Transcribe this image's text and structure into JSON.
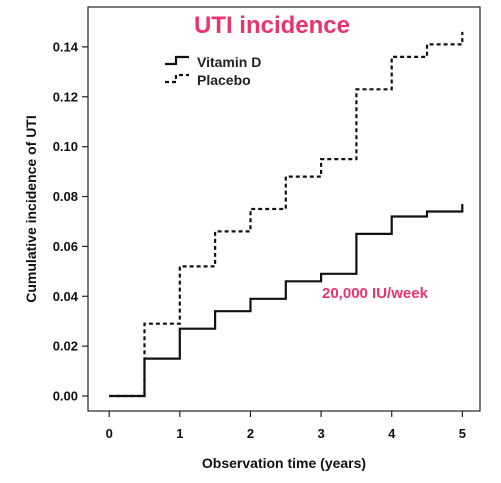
{
  "chart_data": {
    "type": "line",
    "step": true,
    "title": "UTI incidence",
    "xlabel": "Observation time (years)",
    "ylabel": "Cumulative incidence of UTI",
    "xlim": [
      -0.3,
      5.25
    ],
    "ylim": [
      -0.006,
      0.156
    ],
    "x_ticks": [
      0,
      1,
      2,
      3,
      4,
      5
    ],
    "y_ticks": [
      0.0,
      0.02,
      0.04,
      0.06,
      0.08,
      0.1,
      0.12,
      0.14
    ],
    "y_tick_labels": [
      "0.00",
      "0.02",
      "0.04",
      "0.06",
      "0.08",
      "0.10",
      "0.12",
      "0.14"
    ],
    "x_tick_labels": [
      "0",
      "1",
      "2",
      "3",
      "4",
      "5"
    ],
    "grid": false,
    "legend_position": "top-left",
    "series": [
      {
        "name": "Vitamin D",
        "style": "solid",
        "color": "#111111",
        "x": [
          0,
          0.5,
          1.0,
          1.5,
          2.0,
          2.5,
          3.0,
          3.5,
          4.0,
          4.5,
          5.0
        ],
        "y": [
          0.0,
          0.015,
          0.027,
          0.034,
          0.039,
          0.046,
          0.049,
          0.065,
          0.072,
          0.074,
          0.077
        ],
        "end_x": 5.0
      },
      {
        "name": "Placebo",
        "style": "dashed",
        "color": "#111111",
        "x": [
          0,
          0.5,
          1.0,
          1.5,
          2.0,
          2.5,
          3.0,
          3.5,
          4.0,
          4.5,
          5.0
        ],
        "y": [
          0.0,
          0.029,
          0.052,
          0.066,
          0.075,
          0.088,
          0.095,
          0.123,
          0.136,
          0.141,
          0.146
        ],
        "end_x": 5.0
      }
    ],
    "annotations": [
      {
        "text": "20,000 IU/week",
        "x": 3.05,
        "y": 0.041,
        "color": "#e8336d"
      }
    ],
    "title_color": "#e8336d"
  }
}
